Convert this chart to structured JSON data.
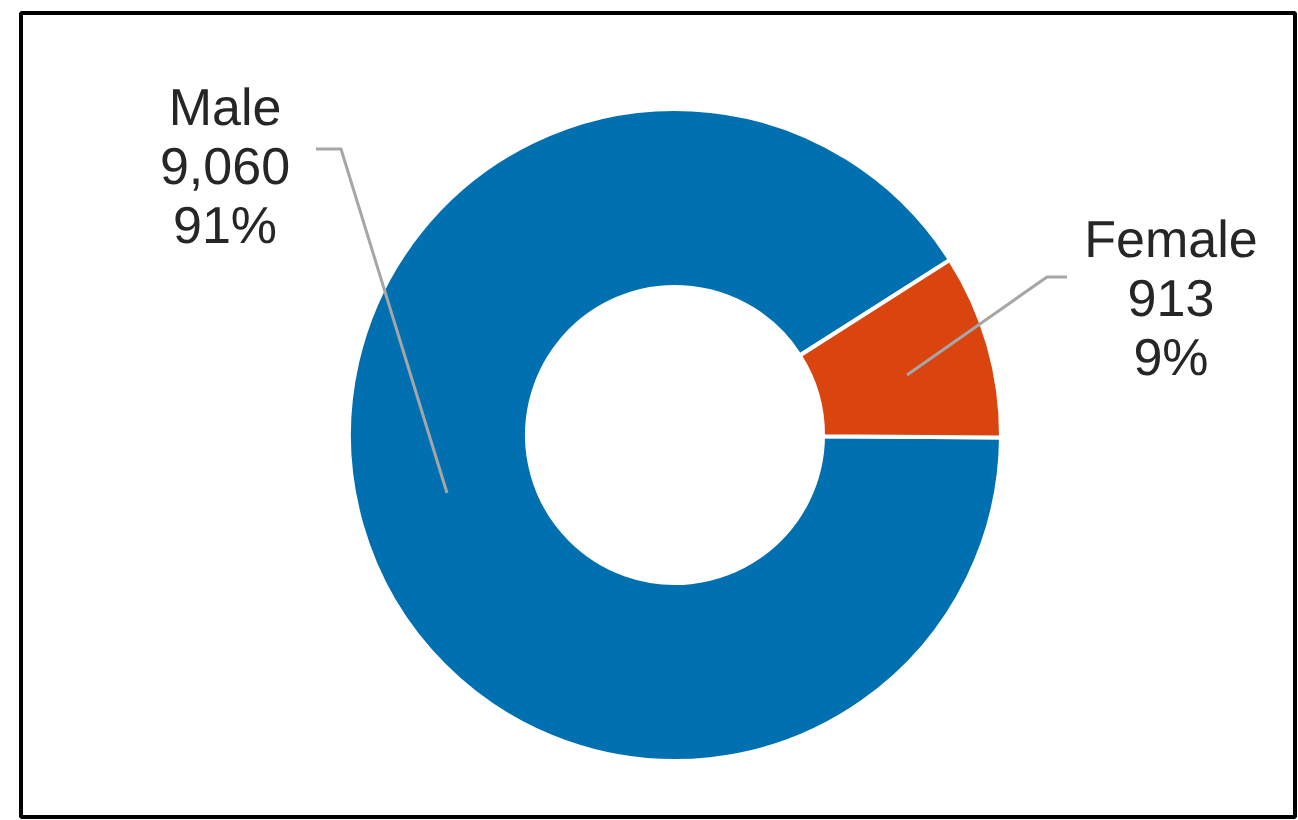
{
  "chart_data": {
    "type": "donut",
    "categories": [
      "Male",
      "Female"
    ],
    "values": [
      9060,
      913
    ],
    "colors": [
      "#0070b0",
      "#d9440f"
    ],
    "value_labels": [
      "9,060\n91%",
      "913\n9%"
    ]
  }
}
